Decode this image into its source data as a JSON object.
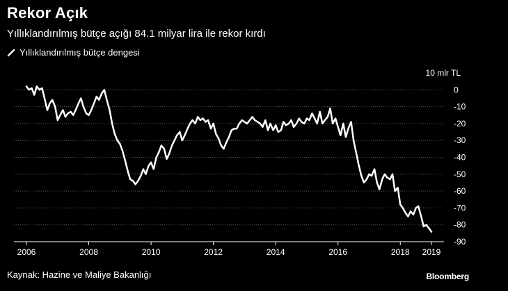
{
  "header": {
    "title": "Rekor Açık",
    "subtitle": "Yıllıklandırılmış bütçe açığı 84.1 milyar lira ile rekor kırdı"
  },
  "legend": {
    "label": "Yıllıklandırılmış bütçe dengesi"
  },
  "footer": {
    "source": "Kaynak: Hazine ve Maliye Bakanlığı",
    "brand": "Bloomberg"
  },
  "colors": {
    "background": "#000000",
    "line": "#ffffff",
    "grid": "#5a5a5a",
    "axis": "#ffffff"
  },
  "chart_data": {
    "type": "line",
    "title": "Rekor Açık",
    "unit_label": "10 mlr TL",
    "ylim": [
      -90,
      10
    ],
    "yticks": [
      0,
      -10,
      -20,
      -30,
      -40,
      -50,
      -60,
      -70,
      -80,
      -90
    ],
    "xlim": [
      2006.0,
      2019.1
    ],
    "xticks": [
      2006,
      2008,
      2010,
      2012,
      2014,
      2016,
      2018,
      2019
    ],
    "series": [
      {
        "name": "Yıllıklandırılmış bütçe dengesi",
        "x": [
          2006.0,
          2006.08,
          2006.17,
          2006.25,
          2006.33,
          2006.42,
          2006.5,
          2006.58,
          2006.67,
          2006.75,
          2006.83,
          2006.92,
          2007.0,
          2007.08,
          2007.17,
          2007.25,
          2007.33,
          2007.42,
          2007.5,
          2007.58,
          2007.67,
          2007.75,
          2007.83,
          2007.92,
          2008.0,
          2008.08,
          2008.17,
          2008.25,
          2008.33,
          2008.42,
          2008.5,
          2008.58,
          2008.67,
          2008.75,
          2008.83,
          2008.92,
          2009.0,
          2009.08,
          2009.17,
          2009.25,
          2009.33,
          2009.42,
          2009.5,
          2009.58,
          2009.67,
          2009.75,
          2009.83,
          2009.92,
          2010.0,
          2010.08,
          2010.17,
          2010.25,
          2010.33,
          2010.42,
          2010.5,
          2010.58,
          2010.67,
          2010.75,
          2010.83,
          2010.92,
          2011.0,
          2011.08,
          2011.17,
          2011.25,
          2011.33,
          2011.42,
          2011.5,
          2011.58,
          2011.67,
          2011.75,
          2011.83,
          2011.92,
          2012.0,
          2012.08,
          2012.17,
          2012.25,
          2012.33,
          2012.42,
          2012.5,
          2012.58,
          2012.67,
          2012.75,
          2012.83,
          2012.92,
          2013.0,
          2013.08,
          2013.17,
          2013.25,
          2013.33,
          2013.42,
          2013.5,
          2013.58,
          2013.67,
          2013.75,
          2013.83,
          2013.92,
          2014.0,
          2014.08,
          2014.17,
          2014.25,
          2014.33,
          2014.42,
          2014.5,
          2014.58,
          2014.67,
          2014.75,
          2014.83,
          2014.92,
          2015.0,
          2015.08,
          2015.17,
          2015.25,
          2015.33,
          2015.42,
          2015.5,
          2015.58,
          2015.67,
          2015.75,
          2015.83,
          2015.92,
          2016.0,
          2016.08,
          2016.17,
          2016.25,
          2016.33,
          2016.42,
          2016.5,
          2016.58,
          2016.67,
          2016.75,
          2016.83,
          2016.92,
          2017.0,
          2017.08,
          2017.17,
          2017.25,
          2017.33,
          2017.42,
          2017.5,
          2017.58,
          2017.67,
          2017.75,
          2017.83,
          2017.92,
          2018.0,
          2018.08,
          2018.17,
          2018.25,
          2018.33,
          2018.42,
          2018.5,
          2018.58,
          2018.67,
          2018.75,
          2018.83,
          2018.92,
          2019.0
        ],
        "values": [
          2,
          0,
          1,
          -3,
          2,
          0,
          1,
          -5,
          -12,
          -8,
          -6,
          -10,
          -18,
          -15,
          -12,
          -16,
          -14,
          -13,
          -15,
          -12,
          -8,
          -5,
          -10,
          -14,
          -15,
          -12,
          -8,
          -4,
          -6,
          -2,
          0,
          -6,
          -12,
          -20,
          -26,
          -30,
          -32,
          -36,
          -42,
          -48,
          -53,
          -54,
          -56,
          -54,
          -51,
          -47,
          -50,
          -45,
          -43,
          -47,
          -40,
          -37,
          -33,
          -35,
          -41,
          -38,
          -33,
          -30,
          -27,
          -25,
          -30,
          -27,
          -23,
          -20,
          -18,
          -20,
          -16,
          -18,
          -17,
          -19,
          -18,
          -23,
          -20,
          -26,
          -29,
          -33,
          -35,
          -31,
          -28,
          -24,
          -23,
          -23,
          -20,
          -18,
          -19,
          -20,
          -18,
          -16,
          -18,
          -19,
          -20,
          -22,
          -18,
          -24,
          -20,
          -24,
          -21,
          -25,
          -24,
          -19,
          -21,
          -20,
          -18,
          -22,
          -20,
          -17,
          -19,
          -20,
          -17,
          -18,
          -14,
          -17,
          -20,
          -13,
          -20,
          -18,
          -16,
          -11,
          -20,
          -17,
          -22,
          -27,
          -20,
          -28,
          -23,
          -19,
          -30,
          -37,
          -45,
          -51,
          -55,
          -53,
          -50,
          -51,
          -47,
          -55,
          -59,
          -53,
          -50,
          -52,
          -53,
          -50,
          -60,
          -58,
          -68,
          -70,
          -73,
          -75,
          -72,
          -74,
          -70,
          -69,
          -75,
          -81,
          -80,
          -82,
          -84.1
        ]
      }
    ]
  }
}
